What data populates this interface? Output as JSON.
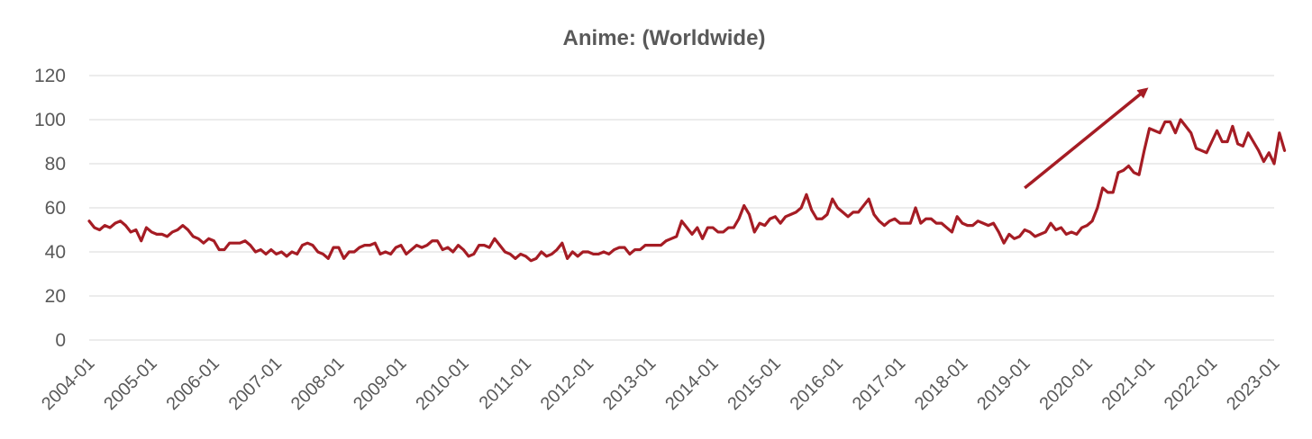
{
  "chart_data": {
    "type": "line",
    "title": "Anime: (Worldwide)",
    "xlabel": "",
    "ylabel": "",
    "ylim": [
      0,
      120
    ],
    "yticks": [
      0,
      20,
      40,
      60,
      80,
      100,
      120
    ],
    "xticks": [
      "2004-01",
      "2005-01",
      "2006-01",
      "2007-01",
      "2008-01",
      "2009-01",
      "2010-01",
      "2011-01",
      "2012-01",
      "2013-01",
      "2014-01",
      "2015-01",
      "2016-01",
      "2017-01",
      "2018-01",
      "2019-01",
      "2020-01",
      "2021-01",
      "2022-01",
      "2023-01"
    ],
    "grid": true,
    "legend": "none",
    "series_color": "#a51c24",
    "annotation": {
      "type": "arrow",
      "from": [
        "2019-01",
        69
      ],
      "to": [
        "2020-12",
        113
      ]
    },
    "series": [
      {
        "values": [
          54,
          51,
          50,
          52,
          51,
          53,
          54,
          52,
          49,
          50,
          45,
          51,
          49,
          48,
          48,
          47,
          49,
          50,
          52,
          50,
          47,
          46,
          44,
          46,
          45,
          41,
          41,
          44,
          44,
          44,
          45,
          43,
          40,
          41,
          39,
          41,
          39,
          40,
          38,
          40,
          39,
          43,
          44,
          43,
          40,
          39,
          37,
          42,
          42,
          37,
          40,
          40,
          42,
          43,
          43,
          44,
          39,
          40,
          39,
          42,
          43,
          39,
          41,
          43,
          42,
          43,
          45,
          45,
          41,
          42,
          40,
          43,
          41,
          38,
          39,
          43,
          43,
          42,
          46,
          43,
          40,
          39,
          37,
          39,
          38,
          36,
          37,
          40,
          38,
          39,
          41,
          44,
          37,
          40,
          38,
          40,
          40,
          39,
          39,
          40,
          39,
          41,
          42,
          42,
          39,
          41,
          41,
          43,
          43,
          43,
          43,
          45,
          46,
          47,
          54,
          51,
          48,
          51,
          46,
          51,
          51,
          49,
          49,
          51,
          51,
          55,
          61,
          57,
          49,
          53,
          52,
          55,
          56,
          53,
          56,
          57,
          58,
          60,
          66,
          59,
          55,
          55,
          57,
          64,
          60,
          58,
          56,
          58,
          58,
          61,
          64,
          57,
          54,
          52,
          54,
          55,
          53,
          53,
          53,
          60,
          53,
          55,
          55,
          53,
          53,
          51,
          49,
          56,
          53,
          52,
          52,
          54,
          53,
          52,
          53,
          49,
          44,
          48,
          46,
          47,
          50,
          49,
          47,
          48,
          49,
          53,
          50,
          51,
          48,
          49,
          48,
          51,
          52,
          54,
          60,
          69,
          67,
          67,
          76,
          77,
          79,
          76,
          75,
          86,
          96,
          95,
          94,
          99,
          99,
          94,
          100,
          97,
          94,
          87,
          86,
          85,
          90,
          95,
          90,
          90,
          97,
          89,
          88,
          94,
          90,
          86,
          81,
          85,
          80,
          94,
          86
        ]
      }
    ]
  }
}
